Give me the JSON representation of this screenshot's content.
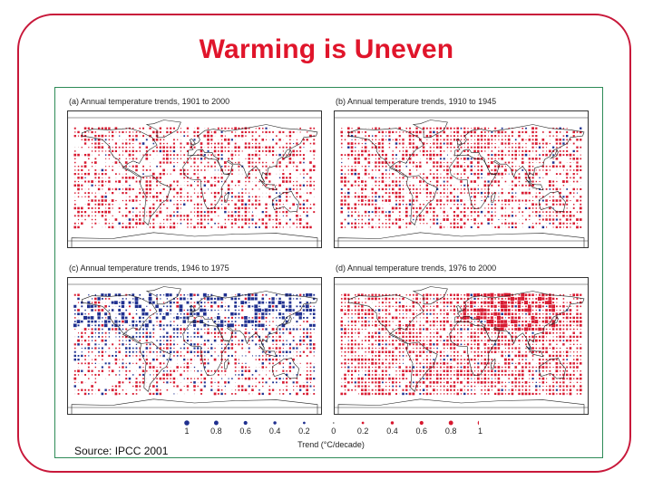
{
  "slide": {
    "title": "Warming is Uneven",
    "source": "Source: IPCC 2001",
    "accent_color": "#e0152b",
    "frame_color": "#c8183a",
    "panel_border_color": "#2e8b57"
  },
  "panels": [
    {
      "id": "a",
      "caption": "(a) Annual temperature trends, 1901 to 2000",
      "warm_density": 0.55,
      "cool_density": 0.04,
      "dominant": "warming"
    },
    {
      "id": "b",
      "caption": "(b) Annual temperature trends, 1910 to 1945",
      "warm_density": 0.6,
      "cool_density": 0.06,
      "dominant": "warming"
    },
    {
      "id": "c",
      "caption": "(c) Annual temperature trends, 1946 to 1975",
      "warm_density": 0.35,
      "cool_density": 0.35,
      "dominant": "mixed"
    },
    {
      "id": "d",
      "caption": "(d) Annual temperature trends, 1976 to 2000",
      "warm_density": 0.8,
      "cool_density": 0.05,
      "dominant": "warming"
    }
  ],
  "legend": {
    "labels": [
      "1",
      "0.8",
      "0.6",
      "0.4",
      "0.2",
      "0",
      "0.2",
      "0.4",
      "0.6",
      "0.8",
      "1"
    ],
    "axis_title": "Trend (°C/decade)",
    "cool_color": "#1f2f8f",
    "warm_color": "#d8182f"
  }
}
